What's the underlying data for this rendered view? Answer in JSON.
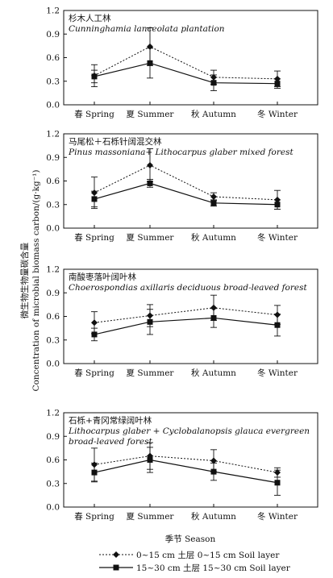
{
  "chart_data": {
    "type": "line",
    "categories": [
      "春 Spring",
      "夏 Summer",
      "秋 Autumn",
      "冬 Winter"
    ],
    "xlabel": "季节 Season",
    "ylabel": "微生物生物量碳含量 Concentration of microbial biomass carbon/(g·kg⁻¹)",
    "ylim": [
      0,
      1.2
    ],
    "yticks": [
      "0.0",
      "0.3",
      "0.6",
      "0.9",
      "1.2"
    ],
    "grid": false,
    "legend": {
      "position": "bottom",
      "entries": [
        {
          "label": "0~15 cm 土层 0~15 cm Soil layer",
          "style": "dotted",
          "marker": "diamond"
        },
        {
          "label": "15~30 cm 土层 15~30 cm Soil layer",
          "style": "solid",
          "marker": "square"
        }
      ]
    },
    "panels": [
      {
        "title": [
          "杉木人工林",
          "Cunninghamia lanceolata plantation"
        ],
        "series": [
          {
            "name": "0~15 cm 土层 0~15 cm Soil layer",
            "values": [
              0.37,
              0.74,
              0.35,
              0.33
            ],
            "errors": [
              0.14,
              0.24,
              0.09,
              0.1
            ]
          },
          {
            "name": "15~30 cm 土层 15~30 cm Soil layer",
            "values": [
              0.36,
              0.53,
              0.28,
              0.27
            ],
            "errors": [
              0.08,
              0.19,
              0.1,
              0.06
            ]
          }
        ]
      },
      {
        "title": [
          "马尾松＋石栎针阔混交林",
          "Pinus massoniana+ Lithocarpus glaber mixed forest"
        ],
        "series": [
          {
            "name": "0~15 cm 土层 0~15 cm Soil layer",
            "values": [
              0.45,
              0.8,
              0.4,
              0.36
            ],
            "errors": [
              0.2,
              0.21,
              0.05,
              0.12
            ]
          },
          {
            "name": "15~30 cm 土层 15~30 cm Soil layer",
            "values": [
              0.37,
              0.57,
              0.32,
              0.3
            ],
            "errors": [
              0.1,
              0.05,
              0.04,
              0.06
            ]
          }
        ]
      },
      {
        "title": [
          "南酸枣落叶阔叶林",
          "Choerospondias axillaris deciduous broad-leaved forest"
        ],
        "series": [
          {
            "name": "0~15 cm 土层 0~15 cm Soil layer",
            "values": [
              0.52,
              0.61,
              0.71,
              0.62
            ],
            "errors": [
              0.14,
              0.14,
              0.16,
              0.12
            ]
          },
          {
            "name": "15~30 cm 土层 15~30 cm Soil layer",
            "values": [
              0.37,
              0.53,
              0.58,
              0.49
            ],
            "errors": [
              0.08,
              0.16,
              0.12,
              0.14
            ]
          }
        ]
      },
      {
        "title": [
          "石栎+青冈常绿阔叶林",
          "Lithocarpus glaber + Cyclobalanopsis glauca evergreen",
          "broad-leaved forest"
        ],
        "series": [
          {
            "name": "0~15 cm 土层 0~15 cm Soil layer",
            "values": [
              0.54,
              0.65,
              0.59,
              0.44
            ],
            "errors": [
              0.21,
              0.17,
              0.14,
              0.06
            ]
          },
          {
            "name": "15~30 cm 土层 15~30 cm Soil layer",
            "values": [
              0.44,
              0.6,
              0.45,
              0.31
            ],
            "errors": [
              0.12,
              0.16,
              0.11,
              0.16
            ]
          }
        ]
      }
    ]
  }
}
